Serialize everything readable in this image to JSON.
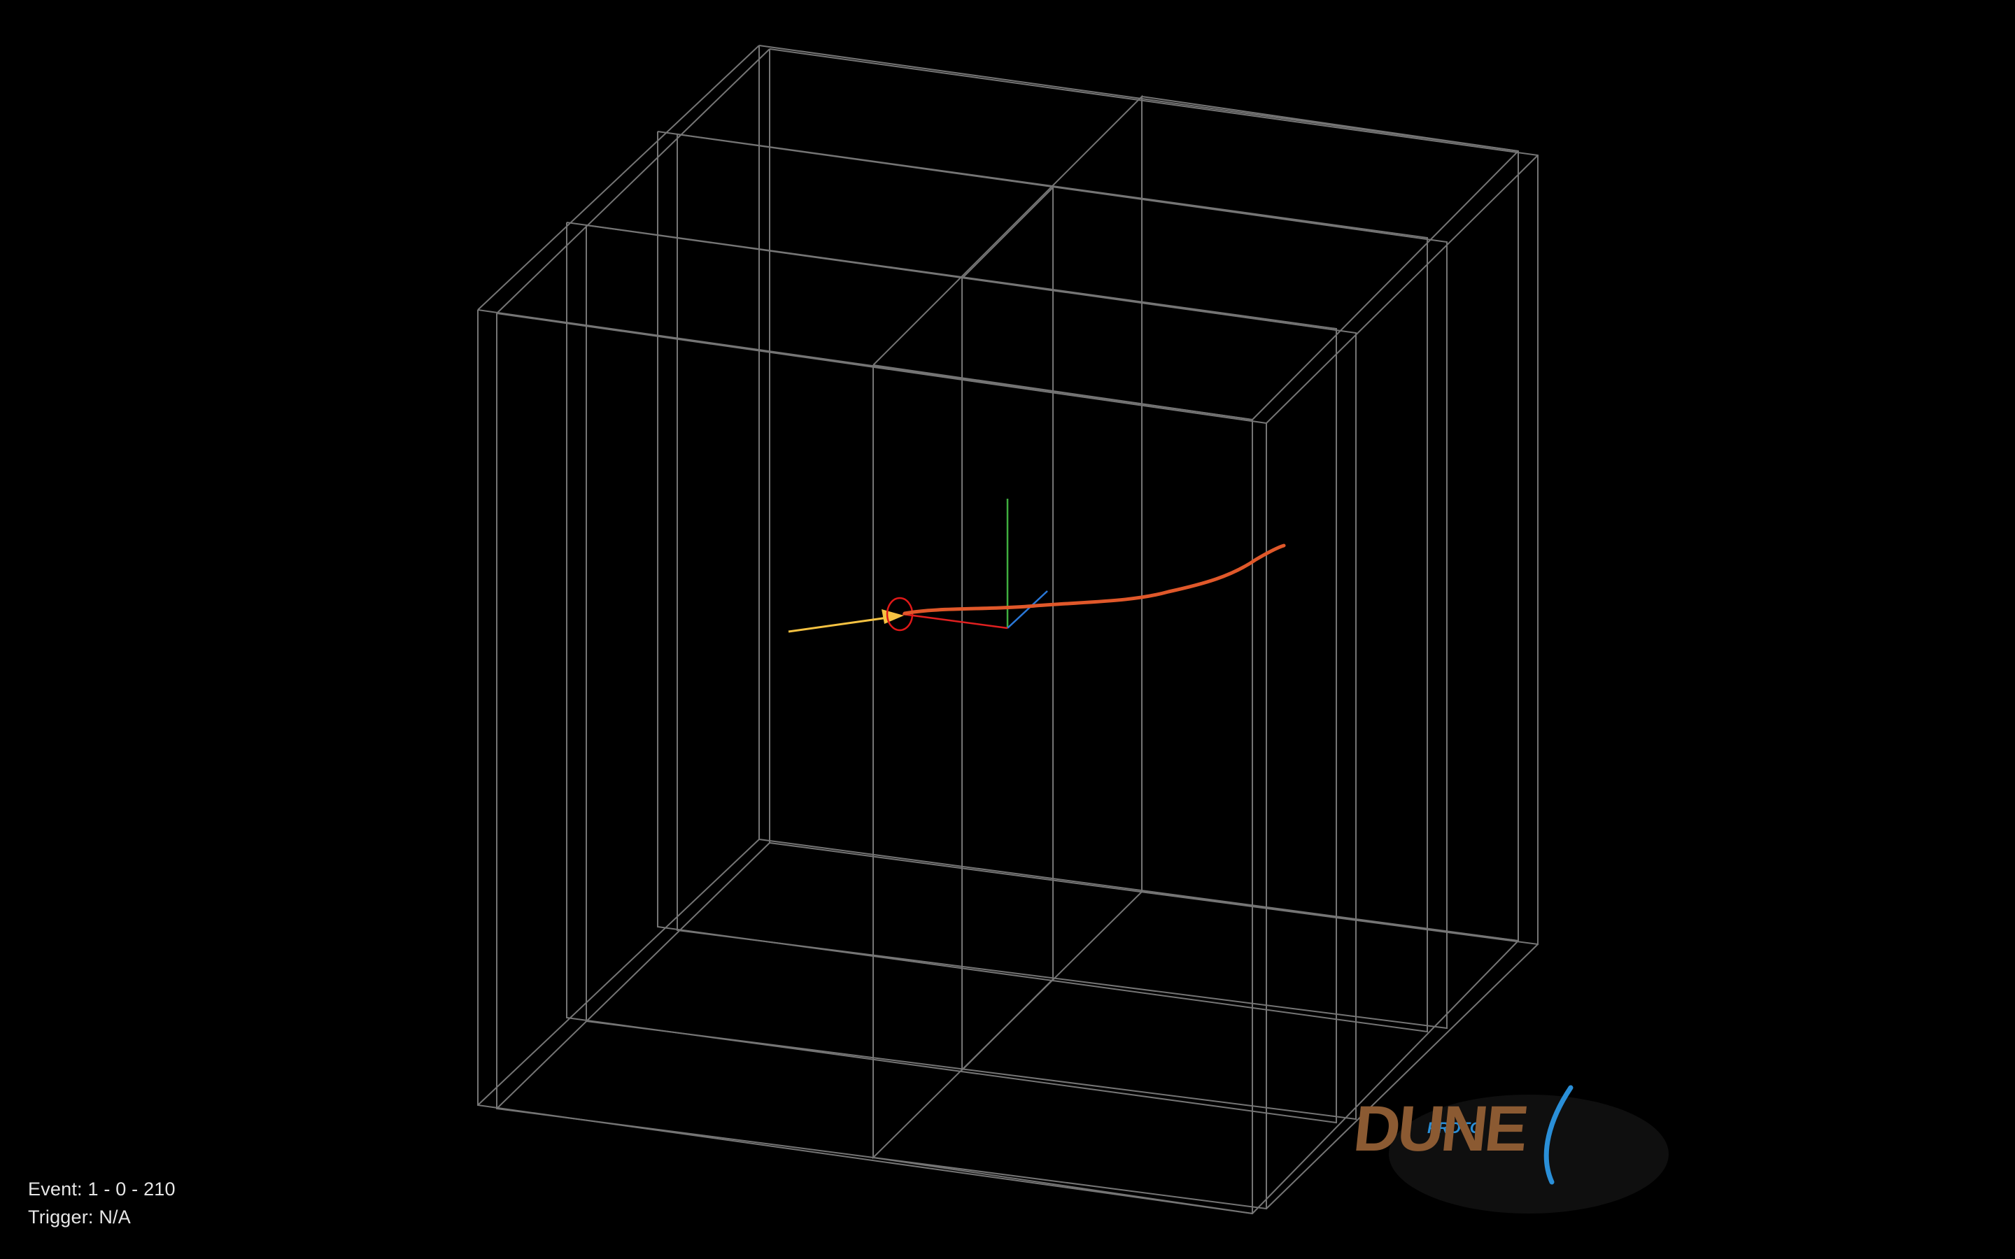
{
  "event_info": {
    "event_label": "Event:",
    "event_value": "1 - 0 - 210",
    "trigger_label": "Trigger:",
    "trigger_value": "N/A"
  },
  "logo": {
    "prefix": "PROTO",
    "name": "DUNE"
  },
  "colors": {
    "background": "#000000",
    "wireframe": "#8a8a8a",
    "beam_track": "#f5c242",
    "muon_track": "#e0582a",
    "vertex_marker": "#e01818",
    "axis_x": "#e02020",
    "axis_y": "#3fae3f",
    "axis_z": "#2a78d8",
    "logo_brown": "#8b5a32",
    "logo_blue": "#2a8fd8"
  }
}
